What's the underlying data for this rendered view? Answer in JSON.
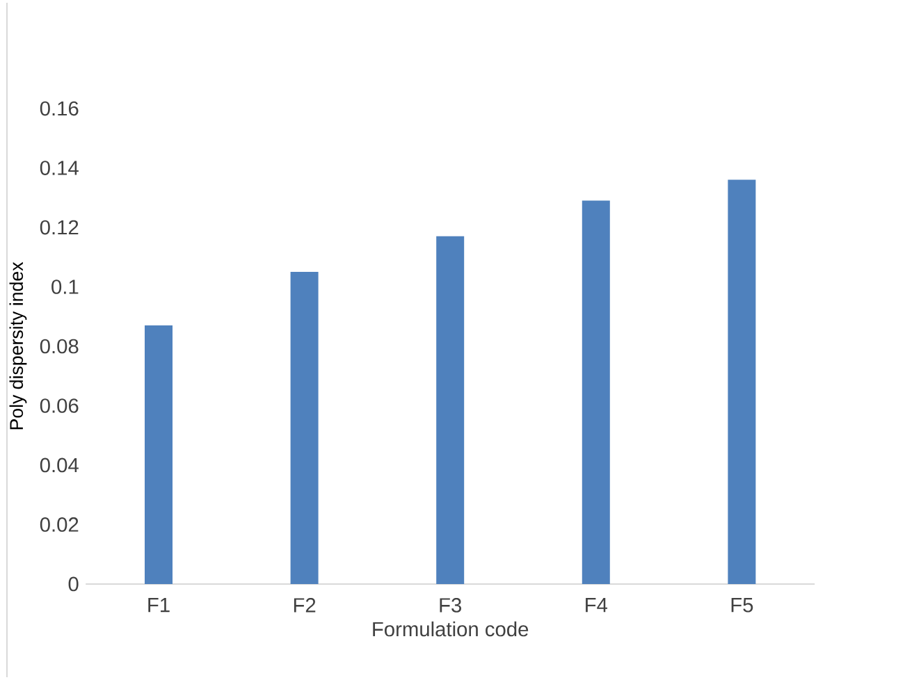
{
  "chart_data": {
    "type": "bar",
    "xlabel": "Formulation code",
    "ylabel": "Poly dispersity index",
    "categories": [
      "F1",
      "F2",
      "F3",
      "F4",
      "F5"
    ],
    "values": [
      0.087,
      0.105,
      0.117,
      0.129,
      0.136
    ],
    "color": "#4f81bd",
    "ylim": [
      0,
      0.16
    ],
    "yticks": [
      0,
      0.02,
      0.04,
      0.06,
      0.08,
      0.1,
      0.12,
      0.14,
      0.16
    ],
    "grid": false
  }
}
